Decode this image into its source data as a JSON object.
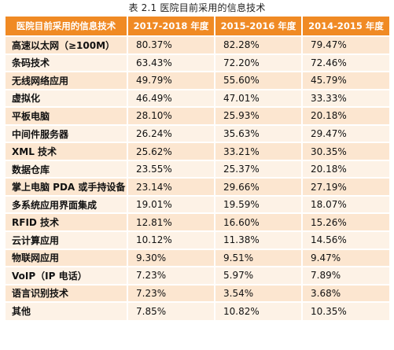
{
  "caption": "表 2.1  医院目前采用的信息技术",
  "columns": [
    "医院目前采用的信息技术",
    "2017-2018 年度",
    "2015-2016 年度",
    "2014-2015 年度"
  ],
  "rows": [
    {
      "label": "高速以太网（≥100M）",
      "values": [
        "80.37%",
        "82.28%",
        "79.47%"
      ]
    },
    {
      "label": "条码技术",
      "values": [
        "63.43%",
        "72.20%",
        "72.46%"
      ]
    },
    {
      "label": "无线网络应用",
      "values": [
        "49.79%",
        "55.60%",
        "45.79%"
      ]
    },
    {
      "label": "虚拟化",
      "values": [
        "46.49%",
        "47.01%",
        "33.33%"
      ]
    },
    {
      "label": "平板电脑",
      "values": [
        "28.10%",
        "25.93%",
        "20.18%"
      ]
    },
    {
      "label": "中间件服务器",
      "values": [
        "26.24%",
        "35.63%",
        "29.47%"
      ]
    },
    {
      "label": "XML 技术",
      "values": [
        "25.62%",
        "33.21%",
        "30.35%"
      ]
    },
    {
      "label": "数据仓库",
      "values": [
        "23.55%",
        "25.37%",
        "20.18%"
      ]
    },
    {
      "label": "掌上电脑 PDA 或手持设备",
      "values": [
        "23.14%",
        "29.66%",
        "27.19%"
      ]
    },
    {
      "label": "多系统应用界面集成",
      "values": [
        "19.01%",
        "19.59%",
        "18.07%"
      ]
    },
    {
      "label": "RFID 技术",
      "values": [
        "12.81%",
        "16.60%",
        "15.26%"
      ]
    },
    {
      "label": "云计算应用",
      "values": [
        "10.12%",
        "11.38%",
        "14.56%"
      ]
    },
    {
      "label": "物联网应用",
      "values": [
        "9.30%",
        "9.51%",
        "9.47%"
      ]
    },
    {
      "label": "VoIP（IP 电话）",
      "values": [
        "7.23%",
        "5.97%",
        "7.89%"
      ]
    },
    {
      "label": "语言识别技术",
      "values": [
        "7.23%",
        "3.54%",
        "3.68%"
      ]
    },
    {
      "label": "其他",
      "values": [
        "7.85%",
        "10.82%",
        "10.35%"
      ]
    }
  ],
  "colors": {
    "header": "#f08a24",
    "row_odd": "#fce6d0",
    "row_even": "#fdf2e6"
  }
}
